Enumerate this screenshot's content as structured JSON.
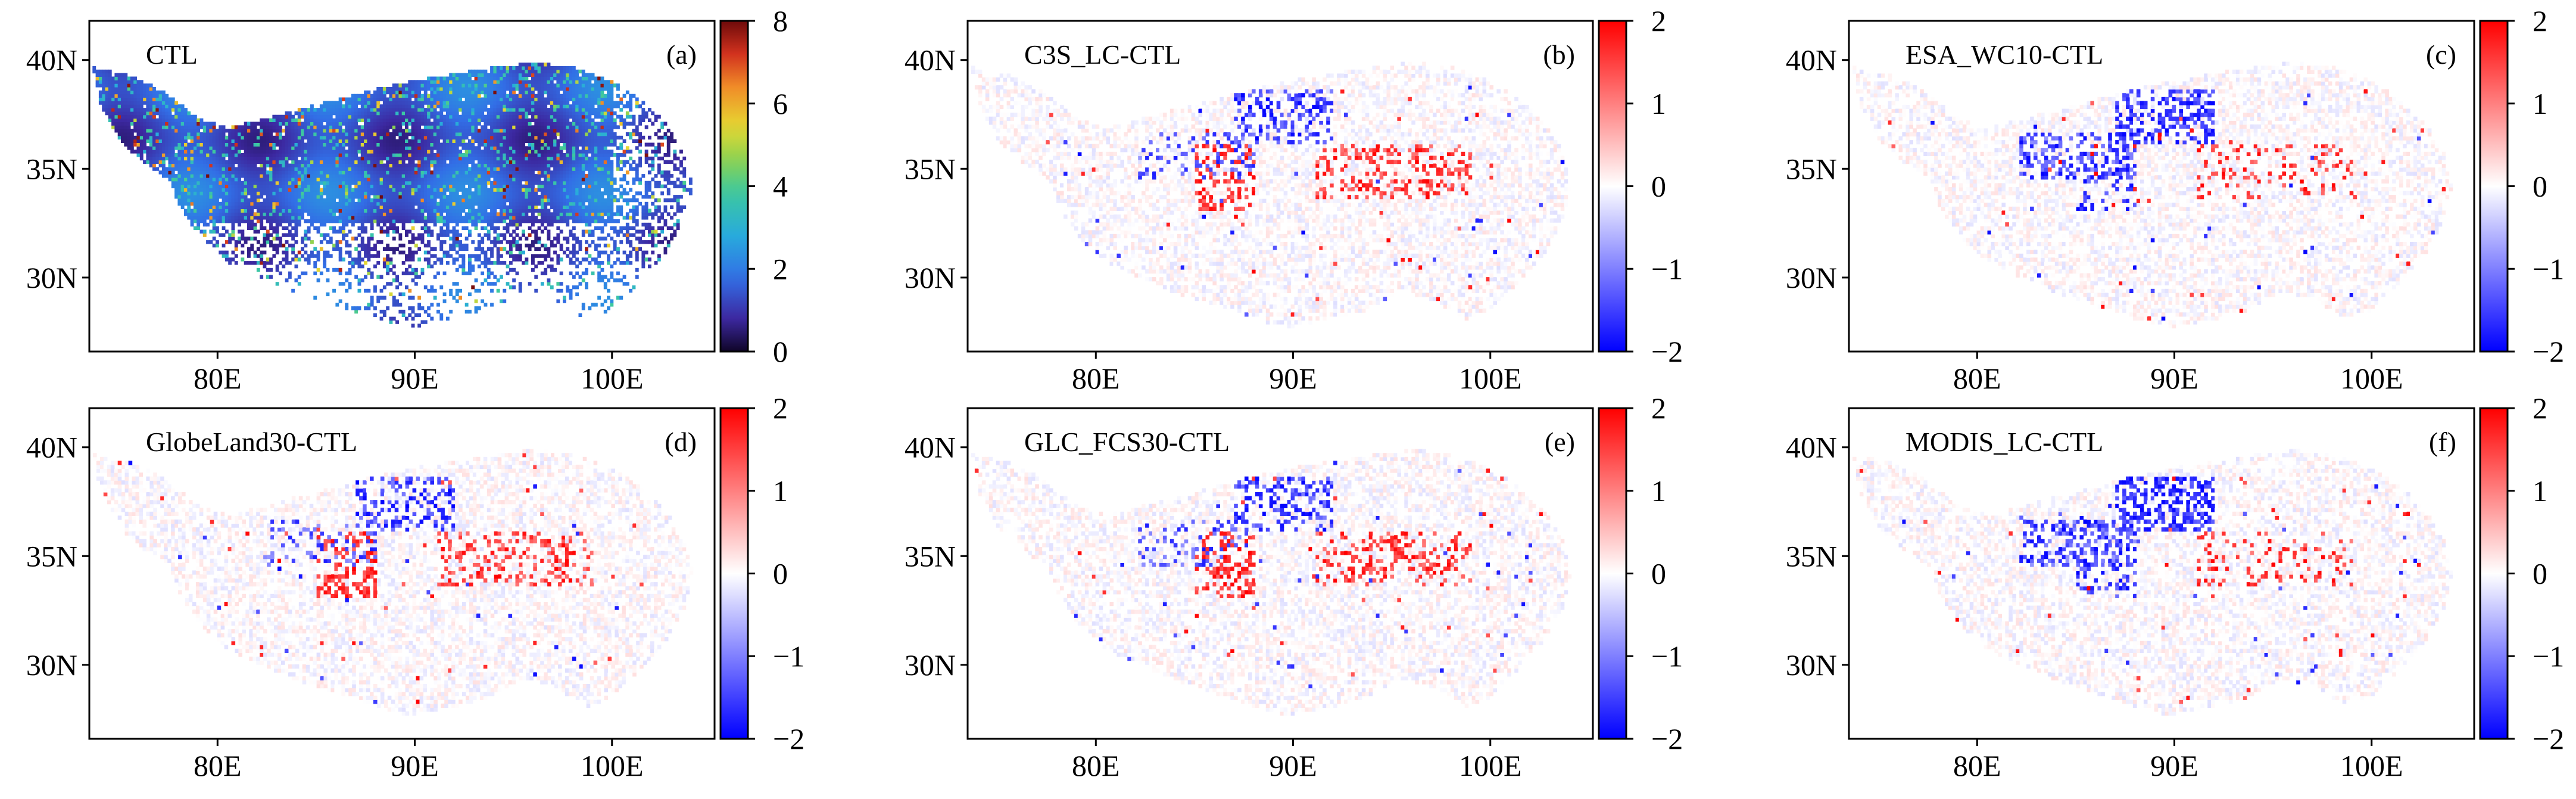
{
  "figure": {
    "x_ticks": [
      "80E",
      "90E",
      "100E"
    ],
    "y_ticks": [
      "40N",
      "35N",
      "30N"
    ],
    "panels": [
      {
        "title": "CTL",
        "letter": "(a)",
        "colormap": "sequential",
        "colorbar_ticks": [
          "8",
          "6",
          "4",
          "2",
          "0"
        ],
        "colorbar_range": [
          0,
          8
        ],
        "accent": "#4f8fe0"
      },
      {
        "title": "C3S_LC-CTL",
        "letter": "(b)",
        "colormap": "diverging-bwr",
        "colorbar_ticks": [
          "2",
          "1",
          "0",
          "−1",
          "−2"
        ],
        "colorbar_range": [
          -2,
          2
        ],
        "accent": "#e03030"
      },
      {
        "title": "ESA_WC10-CTL",
        "letter": "(c)",
        "colormap": "diverging-bwr",
        "colorbar_ticks": [
          "2",
          "1",
          "0",
          "−1",
          "−2"
        ],
        "colorbar_range": [
          -2,
          2
        ],
        "accent": "#2030e0"
      },
      {
        "title": "GlobeLand30-CTL",
        "letter": "(d)",
        "colormap": "diverging-bwr",
        "colorbar_ticks": [
          "2",
          "1",
          "0",
          "−1",
          "−2"
        ],
        "colorbar_range": [
          -2,
          2
        ],
        "accent": "#e03030"
      },
      {
        "title": "GLC_FCS30-CTL",
        "letter": "(e)",
        "colormap": "diverging-bwr",
        "colorbar_ticks": [
          "2",
          "1",
          "0",
          "−1",
          "−2"
        ],
        "colorbar_range": [
          -2,
          2
        ],
        "accent": "#e03030"
      },
      {
        "title": "MODIS_LC-CTL",
        "letter": "(f)",
        "colormap": "diverging-bwr",
        "colorbar_ticks": [
          "2",
          "1",
          "0",
          "−1",
          "−2"
        ],
        "colorbar_range": [
          -2,
          2
        ],
        "accent": "#2030e0"
      }
    ]
  }
}
